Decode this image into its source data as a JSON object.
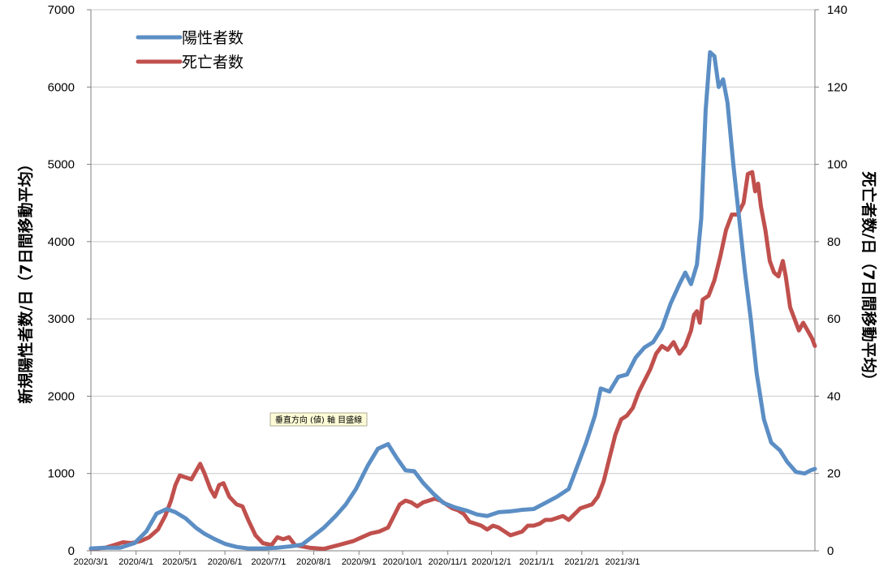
{
  "chart_data": {
    "type": "line",
    "xlabel": "",
    "ylabel": "新規陽性者数/日（7日間移動平均）",
    "y2label": "死亡者数/日（7日間移動平均）",
    "ylim": [
      0,
      7000
    ],
    "y2lim": [
      0,
      140
    ],
    "yticks": [
      "0",
      "1000",
      "2000",
      "3000",
      "4000",
      "5000",
      "6000",
      "7000"
    ],
    "y2ticks": [
      "0",
      "20",
      "40",
      "60",
      "80",
      "100",
      "120",
      "140"
    ],
    "xticks": [
      "2020/3/1",
      "2020/4/1",
      "2020/5/1",
      "2020/6/1",
      "2020/7/1",
      "2020/8/1",
      "2020/9/1",
      "2020/10/1",
      "2020/11/1",
      "2020/12/1",
      "2021/1/1",
      "2021/2/1",
      "2021/3/1"
    ],
    "grid": true,
    "legend": "top-left",
    "tooltip": "垂直方向 (値) 軸 目盛線",
    "series": [
      {
        "name": "陽性者数",
        "axis": "left",
        "color": "#5b8ec4",
        "points": [
          [
            0,
            30
          ],
          [
            10,
            40
          ],
          [
            20,
            40
          ],
          [
            30,
            100
          ],
          [
            38,
            250
          ],
          [
            45,
            480
          ],
          [
            52,
            540
          ],
          [
            58,
            500
          ],
          [
            65,
            420
          ],
          [
            72,
            300
          ],
          [
            78,
            220
          ],
          [
            85,
            150
          ],
          [
            92,
            90
          ],
          [
            100,
            50
          ],
          [
            108,
            30
          ],
          [
            118,
            30
          ],
          [
            128,
            40
          ],
          [
            138,
            60
          ],
          [
            145,
            80
          ],
          [
            152,
            180
          ],
          [
            160,
            300
          ],
          [
            168,
            450
          ],
          [
            175,
            600
          ],
          [
            182,
            800
          ],
          [
            190,
            1100
          ],
          [
            197,
            1320
          ],
          [
            204,
            1380
          ],
          [
            210,
            1200
          ],
          [
            216,
            1040
          ],
          [
            222,
            1030
          ],
          [
            228,
            880
          ],
          [
            235,
            740
          ],
          [
            242,
            620
          ],
          [
            250,
            560
          ],
          [
            258,
            520
          ],
          [
            265,
            470
          ],
          [
            272,
            450
          ],
          [
            280,
            500
          ],
          [
            288,
            510
          ],
          [
            296,
            530
          ],
          [
            304,
            540
          ],
          [
            312,
            620
          ],
          [
            320,
            700
          ],
          [
            328,
            800
          ],
          [
            334,
            1100
          ],
          [
            340,
            1400
          ],
          [
            346,
            1750
          ],
          [
            350,
            2100
          ],
          [
            356,
            2060
          ],
          [
            362,
            2250
          ],
          [
            368,
            2280
          ],
          [
            374,
            2500
          ],
          [
            380,
            2630
          ],
          [
            386,
            2700
          ],
          [
            392,
            2880
          ],
          [
            398,
            3200
          ],
          [
            404,
            3450
          ],
          [
            408,
            3600
          ],
          [
            412,
            3450
          ],
          [
            416,
            3700
          ],
          [
            419,
            4300
          ],
          [
            422,
            5700
          ],
          [
            425,
            6450
          ],
          [
            428,
            6400
          ],
          [
            431,
            6000
          ],
          [
            434,
            6100
          ],
          [
            437,
            5800
          ],
          [
            441,
            5000
          ],
          [
            445,
            4300
          ],
          [
            449,
            3600
          ],
          [
            453,
            3000
          ],
          [
            457,
            2300
          ],
          [
            462,
            1700
          ],
          [
            467,
            1400
          ],
          [
            473,
            1300
          ],
          [
            478,
            1150
          ],
          [
            484,
            1020
          ],
          [
            490,
            1000
          ],
          [
            494,
            1040
          ],
          [
            497,
            1060
          ]
        ]
      },
      {
        "name": "死亡者数",
        "axis": "right",
        "color": "#c0504d",
        "points": [
          [
            0,
            0.5
          ],
          [
            10,
            0.8
          ],
          [
            16,
            1.5
          ],
          [
            22,
            2.2
          ],
          [
            28,
            2.0
          ],
          [
            34,
            2.5
          ],
          [
            40,
            3.5
          ],
          [
            46,
            5.5
          ],
          [
            51,
            9
          ],
          [
            55,
            13
          ],
          [
            58,
            17
          ],
          [
            61,
            19.5
          ],
          [
            65,
            19
          ],
          [
            69,
            18.5
          ],
          [
            72,
            20.5
          ],
          [
            75,
            22.5
          ],
          [
            78,
            20
          ],
          [
            82,
            16
          ],
          [
            85,
            14
          ],
          [
            88,
            17
          ],
          [
            91,
            17.5
          ],
          [
            95,
            14
          ],
          [
            100,
            12
          ],
          [
            104,
            11.5
          ],
          [
            108,
            8
          ],
          [
            113,
            4
          ],
          [
            118,
            2
          ],
          [
            124,
            1.5
          ],
          [
            128,
            3.5
          ],
          [
            132,
            3
          ],
          [
            136,
            3.5
          ],
          [
            140,
            1.5
          ],
          [
            150,
            0.8
          ],
          [
            160,
            0.5
          ],
          [
            170,
            1.5
          ],
          [
            180,
            2.5
          ],
          [
            186,
            3.5
          ],
          [
            192,
            4.5
          ],
          [
            198,
            5
          ],
          [
            204,
            6
          ],
          [
            208,
            9
          ],
          [
            212,
            12
          ],
          [
            216,
            13
          ],
          [
            220,
            12.5
          ],
          [
            224,
            11.5
          ],
          [
            228,
            12.5
          ],
          [
            232,
            13
          ],
          [
            236,
            13.5
          ],
          [
            240,
            13
          ],
          [
            244,
            12
          ],
          [
            248,
            11
          ],
          [
            252,
            10.5
          ],
          [
            256,
            9.5
          ],
          [
            260,
            7.5
          ],
          [
            264,
            7
          ],
          [
            268,
            6.5
          ],
          [
            272,
            5.5
          ],
          [
            276,
            6.5
          ],
          [
            280,
            6
          ],
          [
            284,
            5
          ],
          [
            288,
            4
          ],
          [
            292,
            4.5
          ],
          [
            296,
            5
          ],
          [
            300,
            6.5
          ],
          [
            304,
            6.5
          ],
          [
            308,
            7
          ],
          [
            312,
            8
          ],
          [
            316,
            8
          ],
          [
            320,
            8.5
          ],
          [
            324,
            9
          ],
          [
            328,
            8
          ],
          [
            332,
            9.5
          ],
          [
            336,
            11
          ],
          [
            340,
            11.5
          ],
          [
            344,
            12
          ],
          [
            348,
            14
          ],
          [
            352,
            18
          ],
          [
            356,
            24
          ],
          [
            360,
            30
          ],
          [
            364,
            34
          ],
          [
            368,
            35
          ],
          [
            372,
            37
          ],
          [
            376,
            41
          ],
          [
            380,
            44
          ],
          [
            384,
            47
          ],
          [
            388,
            51
          ],
          [
            392,
            53
          ],
          [
            396,
            52
          ],
          [
            400,
            54
          ],
          [
            404,
            51
          ],
          [
            408,
            53
          ],
          [
            412,
            57
          ],
          [
            414,
            61
          ],
          [
            416,
            62
          ],
          [
            418,
            59
          ],
          [
            420,
            65
          ],
          [
            424,
            66
          ],
          [
            428,
            70
          ],
          [
            432,
            76
          ],
          [
            436,
            83
          ],
          [
            440,
            87
          ],
          [
            444,
            87
          ],
          [
            448,
            90
          ],
          [
            451,
            97.5
          ],
          [
            454,
            98
          ],
          [
            456,
            93
          ],
          [
            458,
            95
          ],
          [
            460,
            89
          ],
          [
            463,
            83
          ],
          [
            466,
            75
          ],
          [
            469,
            72
          ],
          [
            472,
            71
          ],
          [
            475,
            75
          ],
          [
            477,
            71
          ],
          [
            480,
            63
          ],
          [
            483,
            60
          ],
          [
            486,
            57
          ],
          [
            489,
            59
          ],
          [
            492,
            57
          ],
          [
            495,
            55
          ],
          [
            497,
            53
          ]
        ]
      }
    ]
  }
}
